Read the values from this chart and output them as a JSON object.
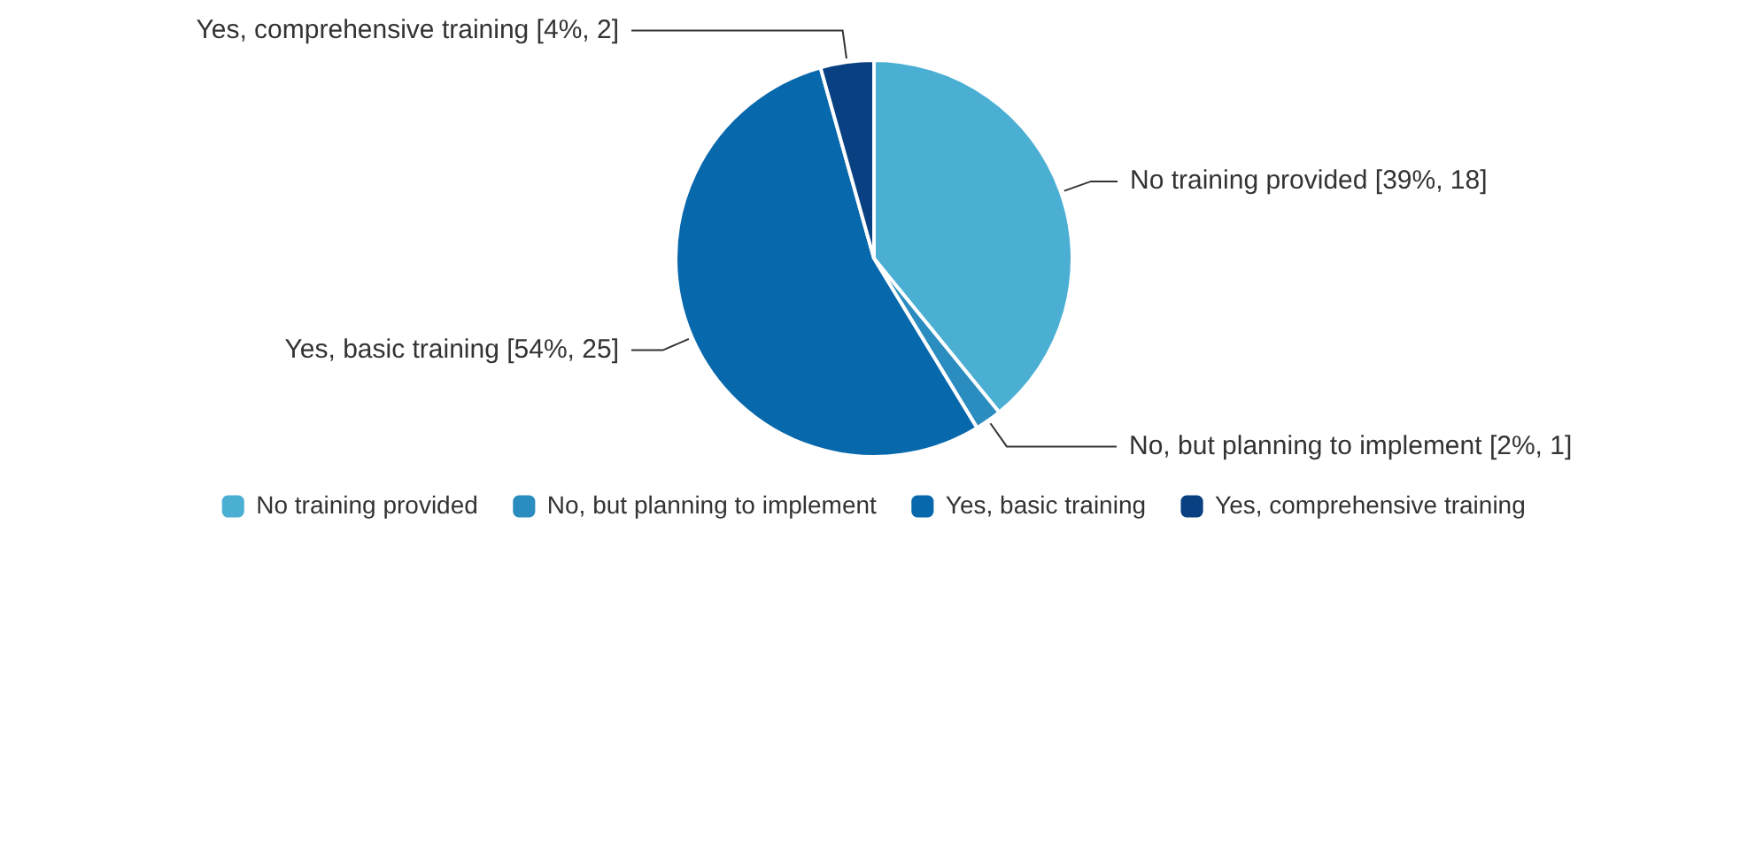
{
  "chart_data": {
    "type": "pie",
    "categories": [
      "No training provided",
      "No, but planning to implement",
      "Yes, basic training",
      "Yes, comprehensive training"
    ],
    "values": [
      18,
      1,
      25,
      2
    ],
    "value_labels": [
      "[39%, 18]",
      "[2%, 1]",
      "[54%, 25]",
      "[4%, 2]"
    ],
    "colors": [
      "#4bafd4",
      "#2b8cc0",
      "#0868ac",
      "#084081"
    ],
    "legend": "bottom"
  }
}
